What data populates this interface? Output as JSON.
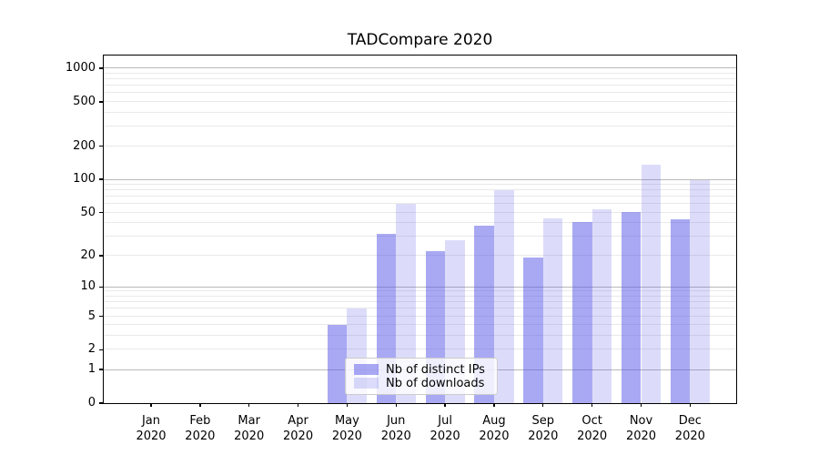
{
  "title": "TADCompare 2020",
  "legend": {
    "items": [
      {
        "label": "Nb of distinct IPs",
        "color": "rgba(90,90,232,0.52)"
      },
      {
        "label": "Nb of downloads",
        "color": "rgba(90,90,232,0.21)"
      }
    ]
  },
  "colors": {
    "bar_distinct_ips": "rgba(90,90,232,0.52)",
    "bar_downloads": "rgba(90,90,232,0.21)",
    "bar_solid_dark": "#a9a9f1",
    "bar_solid_light": "#dcdcf8",
    "grid_major": "#b9b9b9",
    "grid_minor": "#e9e9e9",
    "axis": "#000000"
  },
  "chart_data": {
    "type": "bar",
    "title": "TADCompare 2020",
    "categories": [
      "Jan 2020",
      "Feb 2020",
      "Mar 2020",
      "Apr 2020",
      "May 2020",
      "Jun 2020",
      "Jul 2020",
      "Aug 2020",
      "Sep 2020",
      "Oct 2020",
      "Nov 2020",
      "Dec 2020"
    ],
    "series": [
      {
        "name": "Nb of distinct IPs",
        "values": [
          0,
          0,
          0,
          0,
          4,
          32,
          22,
          38,
          19,
          41,
          51,
          43
        ]
      },
      {
        "name": "Nb of downloads",
        "values": [
          0,
          0,
          0,
          0,
          6,
          60,
          28,
          80,
          44,
          54,
          135,
          98
        ]
      }
    ],
    "xlabel": "",
    "ylabel": "",
    "yscale": "log(value+1)",
    "yticks": [
      0,
      1,
      2,
      5,
      10,
      20,
      50,
      100,
      200,
      500,
      1000
    ],
    "ylim": [
      0,
      1300
    ],
    "grid": "horizontal major (1,10,100,1000) + minor (2-9 per decade)",
    "legend_position": "lower center inside plot area"
  }
}
